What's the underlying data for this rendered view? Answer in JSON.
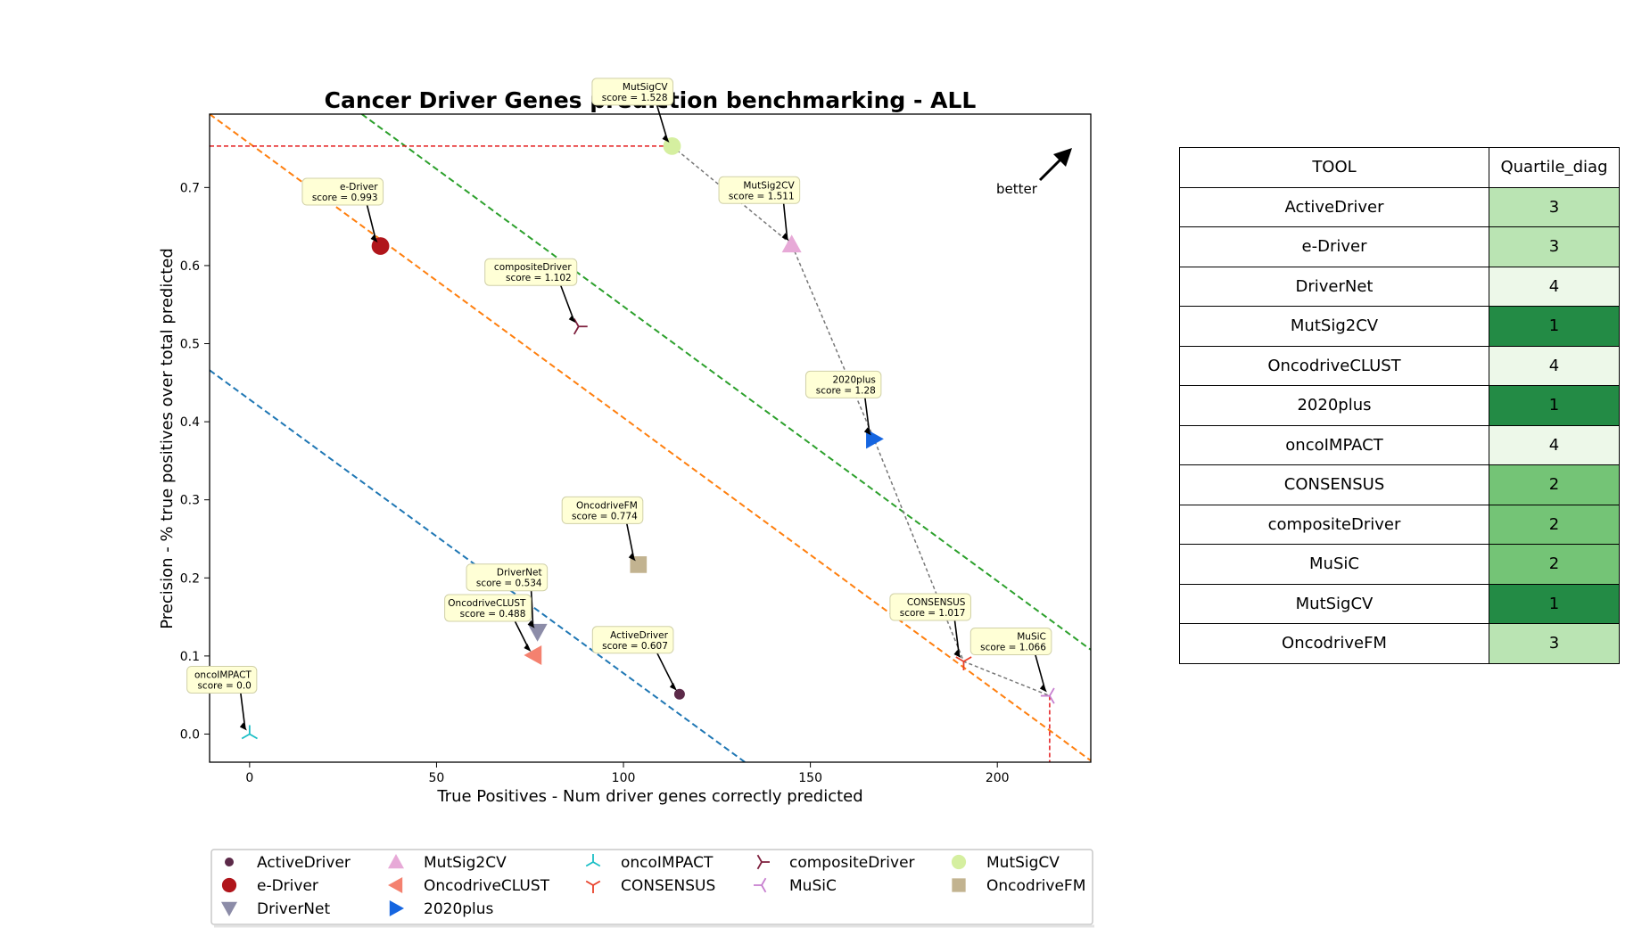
{
  "chart_data": {
    "type": "scatter",
    "title": "Cancer Driver Genes prediction benchmarking - ALL",
    "xlabel": "True Positives - Num driver genes correctly predicted",
    "ylabel": "Precision - % true positives over total predicted",
    "xlim": [
      -10.7,
      225
    ],
    "ylim": [
      -0.036,
      0.794
    ],
    "xticks": [
      0,
      50,
      100,
      150,
      200
    ],
    "yticks": [
      0.0,
      0.1,
      0.2,
      0.3,
      0.4,
      0.5,
      0.6,
      0.7
    ],
    "better_label": "better",
    "series": [
      {
        "name": "ActiveDriver",
        "x": 115,
        "y": 0.051,
        "score_label": "score = 0.607",
        "color": "#5c2a49",
        "marker": "circle-small"
      },
      {
        "name": "e-Driver",
        "x": 35,
        "y": 0.625,
        "score_label": "score = 0.993",
        "color": "#b0151b",
        "marker": "circle"
      },
      {
        "name": "DriverNet",
        "x": 77,
        "y": 0.131,
        "score_label": "score = 0.534",
        "color": "#8c8ca8",
        "marker": "triangle-down"
      },
      {
        "name": "MutSig2CV",
        "x": 145,
        "y": 0.627,
        "score_label": "score = 1.511",
        "color": "#e7a9d7",
        "marker": "triangle-up"
      },
      {
        "name": "OncodriveCLUST",
        "x": 76,
        "y": 0.101,
        "score_label": "score = 0.488",
        "color": "#f4816f",
        "marker": "triangle-left"
      },
      {
        "name": "2020plus",
        "x": 167,
        "y": 0.378,
        "score_label": "score = 1.28",
        "color": "#1565e0",
        "marker": "triangle-right"
      },
      {
        "name": "oncoIMPACT",
        "x": 0,
        "y": 0.0,
        "score_label": "score = 0.0",
        "color": "#1bbfc6",
        "marker": "tri-down"
      },
      {
        "name": "CONSENSUS",
        "x": 191,
        "y": 0.093,
        "score_label": "score = 1.017",
        "color": "#e8412a",
        "marker": "tri-up"
      },
      {
        "name": "compositeDriver",
        "x": 88,
        "y": 0.522,
        "score_label": "score = 1.102",
        "color": "#7e1f3d",
        "marker": "tri-left"
      },
      {
        "name": "MuSiC",
        "x": 214,
        "y": 0.049,
        "score_label": "score = 1.066",
        "color": "#c77fcf",
        "marker": "tri-right"
      },
      {
        "name": "MutSigCV",
        "x": 113,
        "y": 0.753,
        "score_label": "score = 1.528",
        "color": "#d5efa0",
        "marker": "circle"
      },
      {
        "name": "OncodriveFM",
        "x": 104,
        "y": 0.217,
        "score_label": "score = 0.774",
        "color": "#c2b390",
        "marker": "square"
      }
    ],
    "pareto_frontier": [
      "MutSigCV",
      "MutSig2CV",
      "2020plus",
      "CONSENSUS",
      "MuSiC"
    ],
    "diagonal_lines": [
      {
        "color": "#1f77b4",
        "p1": [
          -10.7,
          0.466
        ],
        "p2": [
          132.5,
          -0.036
        ]
      },
      {
        "color": "#ff7f0e",
        "p1": [
          -10.7,
          0.794
        ],
        "p2": [
          225,
          -0.034
        ]
      },
      {
        "color": "#2ca02c",
        "p1": [
          30,
          0.794
        ],
        "p2": [
          225,
          0.108
        ]
      }
    ],
    "reference_lines": {
      "color": "#e41a1c",
      "y_max": 0.753,
      "x_max": 214
    },
    "legend_placement": "bottom",
    "legend_columns": [
      [
        "ActiveDriver",
        "e-Driver",
        "DriverNet"
      ],
      [
        "MutSig2CV",
        "OncodriveCLUST",
        "2020plus"
      ],
      [
        "oncoIMPACT",
        "CONSENSUS"
      ],
      [
        "compositeDriver",
        "MuSiC"
      ],
      [
        "MutSigCV",
        "OncodriveFM"
      ]
    ]
  },
  "table": {
    "headers": [
      "TOOL",
      "Quartile_diag"
    ],
    "rows": [
      {
        "tool": "ActiveDriver",
        "quartile": "3",
        "color": "#bae4b3"
      },
      {
        "tool": "e-Driver",
        "quartile": "3",
        "color": "#bae4b3"
      },
      {
        "tool": "DriverNet",
        "quartile": "4",
        "color": "#edf8e9"
      },
      {
        "tool": "MutSig2CV",
        "quartile": "1",
        "color": "#238b45"
      },
      {
        "tool": "OncodriveCLUST",
        "quartile": "4",
        "color": "#edf8e9"
      },
      {
        "tool": "2020plus",
        "quartile": "1",
        "color": "#238b45"
      },
      {
        "tool": "oncoIMPACT",
        "quartile": "4",
        "color": "#edf8e9"
      },
      {
        "tool": "CONSENSUS",
        "quartile": "2",
        "color": "#74c476"
      },
      {
        "tool": "compositeDriver",
        "quartile": "2",
        "color": "#74c476"
      },
      {
        "tool": "MuSiC",
        "quartile": "2",
        "color": "#74c476"
      },
      {
        "tool": "MutSigCV",
        "quartile": "1",
        "color": "#238b45"
      },
      {
        "tool": "OncodriveFM",
        "quartile": "3",
        "color": "#bae4b3"
      }
    ]
  }
}
